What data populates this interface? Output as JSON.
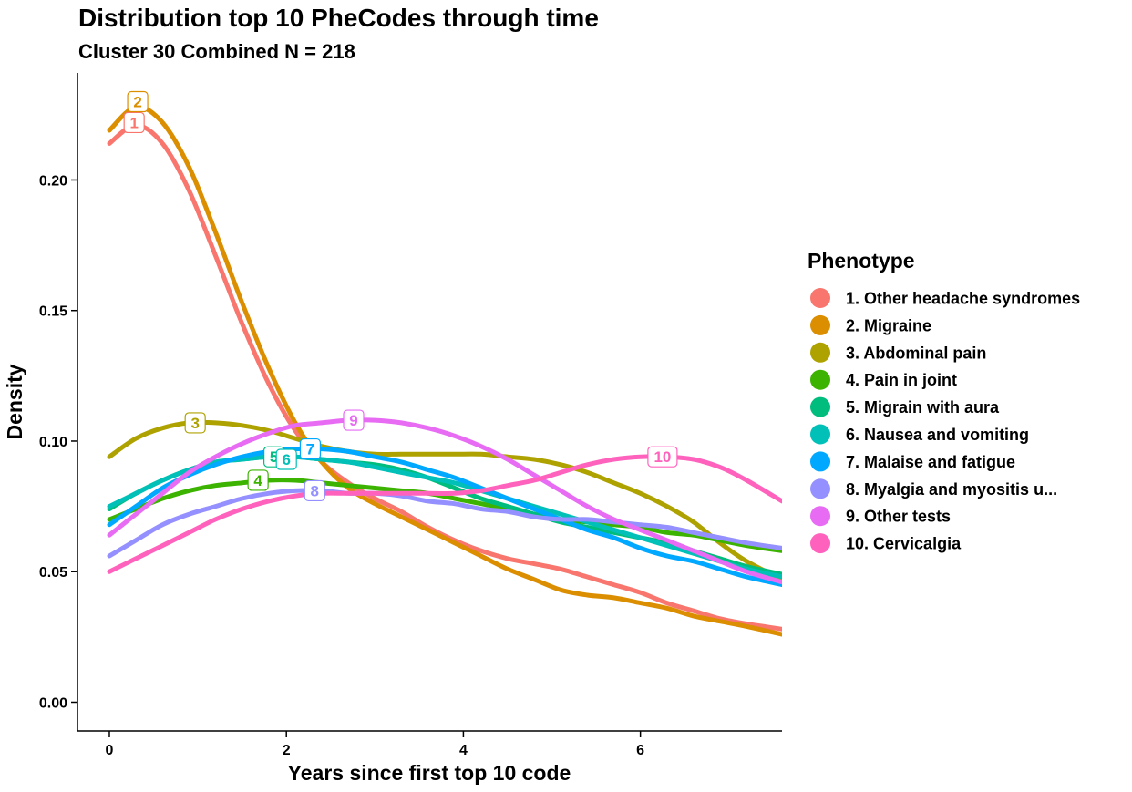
{
  "chart_data": {
    "type": "line",
    "title": "Distribution top 10 PheCodes through time",
    "subtitle": "Cluster 30 Combined N = 218",
    "xlabel": "Years since first top 10 code",
    "ylabel": "Density",
    "xlim": [
      -0.35,
      7.6
    ],
    "ylim": [
      -0.011,
      0.241
    ],
    "x_ticks": [
      0,
      2,
      4,
      6
    ],
    "x_tick_labels": [
      "0",
      "2",
      "4",
      "6"
    ],
    "y_ticks": [
      0.0,
      0.05,
      0.1,
      0.15,
      0.2
    ],
    "y_tick_labels": [
      "0.00",
      "0.05",
      "0.10",
      "0.15",
      "0.20"
    ],
    "grid": false,
    "legend": {
      "title": "Phenotype",
      "position": "right"
    },
    "series": [
      {
        "name": "1. Other headache syndromes",
        "label": "1",
        "color": "#F8766D",
        "label_at": [
          0.28,
          0.222
        ],
        "points": [
          [
            0,
            0.214
          ],
          [
            0.3,
            0.221
          ],
          [
            0.6,
            0.214
          ],
          [
            0.9,
            0.196
          ],
          [
            1.2,
            0.171
          ],
          [
            1.5,
            0.145
          ],
          [
            1.8,
            0.122
          ],
          [
            2.1,
            0.104
          ],
          [
            2.4,
            0.092
          ],
          [
            2.7,
            0.084
          ],
          [
            3.0,
            0.078
          ],
          [
            3.3,
            0.073
          ],
          [
            3.6,
            0.067
          ],
          [
            3.9,
            0.062
          ],
          [
            4.2,
            0.058
          ],
          [
            4.5,
            0.055
          ],
          [
            4.8,
            0.053
          ],
          [
            5.1,
            0.051
          ],
          [
            5.4,
            0.048
          ],
          [
            5.7,
            0.045
          ],
          [
            6.0,
            0.042
          ],
          [
            6.3,
            0.038
          ],
          [
            6.6,
            0.035
          ],
          [
            6.9,
            0.032
          ],
          [
            7.2,
            0.03
          ],
          [
            7.6,
            0.028
          ]
        ]
      },
      {
        "name": "2. Migraine",
        "label": "2",
        "color": "#DB8E00",
        "label_at": [
          0.32,
          0.23
        ],
        "points": [
          [
            0,
            0.219
          ],
          [
            0.3,
            0.228
          ],
          [
            0.6,
            0.222
          ],
          [
            0.9,
            0.205
          ],
          [
            1.2,
            0.18
          ],
          [
            1.5,
            0.153
          ],
          [
            1.8,
            0.128
          ],
          [
            2.1,
            0.107
          ],
          [
            2.4,
            0.092
          ],
          [
            2.7,
            0.082
          ],
          [
            3.0,
            0.076
          ],
          [
            3.3,
            0.071
          ],
          [
            3.6,
            0.066
          ],
          [
            3.9,
            0.061
          ],
          [
            4.2,
            0.056
          ],
          [
            4.5,
            0.051
          ],
          [
            4.8,
            0.047
          ],
          [
            5.1,
            0.043
          ],
          [
            5.4,
            0.041
          ],
          [
            5.7,
            0.04
          ],
          [
            6.0,
            0.038
          ],
          [
            6.3,
            0.036
          ],
          [
            6.6,
            0.033
          ],
          [
            6.9,
            0.031
          ],
          [
            7.2,
            0.029
          ],
          [
            7.6,
            0.026
          ]
        ]
      },
      {
        "name": "3. Abdominal pain",
        "label": "3",
        "color": "#AEA200",
        "label_at": [
          0.97,
          0.107
        ],
        "points": [
          [
            0,
            0.094
          ],
          [
            0.3,
            0.101
          ],
          [
            0.6,
            0.105
          ],
          [
            0.9,
            0.107
          ],
          [
            1.2,
            0.107
          ],
          [
            1.5,
            0.106
          ],
          [
            1.8,
            0.104
          ],
          [
            2.1,
            0.101
          ],
          [
            2.4,
            0.098
          ],
          [
            2.7,
            0.096
          ],
          [
            3.0,
            0.095
          ],
          [
            3.3,
            0.095
          ],
          [
            3.6,
            0.095
          ],
          [
            3.9,
            0.095
          ],
          [
            4.2,
            0.095
          ],
          [
            4.5,
            0.094
          ],
          [
            4.8,
            0.093
          ],
          [
            5.1,
            0.091
          ],
          [
            5.4,
            0.088
          ],
          [
            5.7,
            0.084
          ],
          [
            6.0,
            0.08
          ],
          [
            6.3,
            0.075
          ],
          [
            6.6,
            0.069
          ],
          [
            6.9,
            0.061
          ],
          [
            7.2,
            0.054
          ],
          [
            7.6,
            0.047
          ]
        ]
      },
      {
        "name": "4. Pain in joint",
        "label": "4",
        "color": "#3BB300",
        "label_at": [
          1.68,
          0.085
        ],
        "points": [
          [
            0,
            0.07
          ],
          [
            0.3,
            0.074
          ],
          [
            0.6,
            0.078
          ],
          [
            0.9,
            0.081
          ],
          [
            1.2,
            0.083
          ],
          [
            1.5,
            0.084
          ],
          [
            1.8,
            0.085
          ],
          [
            2.1,
            0.085
          ],
          [
            2.4,
            0.084
          ],
          [
            2.7,
            0.083
          ],
          [
            3.0,
            0.082
          ],
          [
            3.3,
            0.081
          ],
          [
            3.6,
            0.08
          ],
          [
            3.9,
            0.078
          ],
          [
            4.2,
            0.076
          ],
          [
            4.5,
            0.074
          ],
          [
            4.8,
            0.072
          ],
          [
            5.1,
            0.07
          ],
          [
            5.4,
            0.069
          ],
          [
            5.7,
            0.068
          ],
          [
            6.0,
            0.067
          ],
          [
            6.3,
            0.065
          ],
          [
            6.6,
            0.064
          ],
          [
            6.9,
            0.062
          ],
          [
            7.2,
            0.06
          ],
          [
            7.6,
            0.058
          ]
        ]
      },
      {
        "name": "5. Migrain with aura",
        "label": "5",
        "color": "#00BD7D",
        "label_at": [
          1.86,
          0.094
        ],
        "points": [
          [
            0,
            0.074
          ],
          [
            0.3,
            0.08
          ],
          [
            0.6,
            0.085
          ],
          [
            0.9,
            0.089
          ],
          [
            1.2,
            0.092
          ],
          [
            1.5,
            0.093
          ],
          [
            1.8,
            0.094
          ],
          [
            2.1,
            0.094
          ],
          [
            2.4,
            0.093
          ],
          [
            2.7,
            0.092
          ],
          [
            3.0,
            0.091
          ],
          [
            3.3,
            0.089
          ],
          [
            3.6,
            0.086
          ],
          [
            3.9,
            0.082
          ],
          [
            4.2,
            0.078
          ],
          [
            4.5,
            0.075
          ],
          [
            4.8,
            0.072
          ],
          [
            5.1,
            0.069
          ],
          [
            5.4,
            0.067
          ],
          [
            5.7,
            0.065
          ],
          [
            6.0,
            0.063
          ],
          [
            6.3,
            0.061
          ],
          [
            6.6,
            0.058
          ],
          [
            6.9,
            0.055
          ],
          [
            7.2,
            0.052
          ],
          [
            7.6,
            0.049
          ]
        ]
      },
      {
        "name": "6. Nausea and vomiting",
        "label": "6",
        "color": "#00C0B8",
        "label_at": [
          2.0,
          0.093
        ],
        "points": [
          [
            0,
            0.075
          ],
          [
            0.3,
            0.08
          ],
          [
            0.6,
            0.085
          ],
          [
            0.9,
            0.089
          ],
          [
            1.2,
            0.092
          ],
          [
            1.5,
            0.093
          ],
          [
            1.8,
            0.094
          ],
          [
            2.1,
            0.094
          ],
          [
            2.4,
            0.093
          ],
          [
            2.7,
            0.092
          ],
          [
            3.0,
            0.09
          ],
          [
            3.3,
            0.088
          ],
          [
            3.6,
            0.086
          ],
          [
            3.9,
            0.084
          ],
          [
            4.2,
            0.081
          ],
          [
            4.5,
            0.078
          ],
          [
            4.8,
            0.075
          ],
          [
            5.1,
            0.072
          ],
          [
            5.4,
            0.069
          ],
          [
            5.7,
            0.066
          ],
          [
            6.0,
            0.063
          ],
          [
            6.3,
            0.06
          ],
          [
            6.6,
            0.057
          ],
          [
            6.9,
            0.054
          ],
          [
            7.2,
            0.051
          ],
          [
            7.6,
            0.048
          ]
        ]
      },
      {
        "name": "7. Malaise and fatigue",
        "label": "7",
        "color": "#00A8FF",
        "label_at": [
          2.27,
          0.097
        ],
        "points": [
          [
            0,
            0.068
          ],
          [
            0.3,
            0.075
          ],
          [
            0.6,
            0.082
          ],
          [
            0.9,
            0.087
          ],
          [
            1.2,
            0.091
          ],
          [
            1.5,
            0.094
          ],
          [
            1.8,
            0.096
          ],
          [
            2.1,
            0.097
          ],
          [
            2.4,
            0.097
          ],
          [
            2.7,
            0.096
          ],
          [
            3.0,
            0.094
          ],
          [
            3.3,
            0.092
          ],
          [
            3.6,
            0.089
          ],
          [
            3.9,
            0.086
          ],
          [
            4.2,
            0.082
          ],
          [
            4.5,
            0.078
          ],
          [
            4.8,
            0.074
          ],
          [
            5.1,
            0.07
          ],
          [
            5.4,
            0.066
          ],
          [
            5.7,
            0.063
          ],
          [
            6.0,
            0.059
          ],
          [
            6.3,
            0.056
          ],
          [
            6.6,
            0.054
          ],
          [
            6.9,
            0.051
          ],
          [
            7.2,
            0.048
          ],
          [
            7.6,
            0.045
          ]
        ]
      },
      {
        "name": "8. Myalgia and myositis u...",
        "label": "8",
        "color": "#9590FF",
        "label_at": [
          2.32,
          0.081
        ],
        "points": [
          [
            0,
            0.056
          ],
          [
            0.3,
            0.062
          ],
          [
            0.6,
            0.068
          ],
          [
            0.9,
            0.072
          ],
          [
            1.2,
            0.075
          ],
          [
            1.5,
            0.078
          ],
          [
            1.8,
            0.08
          ],
          [
            2.1,
            0.081
          ],
          [
            2.4,
            0.081
          ],
          [
            2.7,
            0.08
          ],
          [
            3.0,
            0.08
          ],
          [
            3.3,
            0.079
          ],
          [
            3.6,
            0.077
          ],
          [
            3.9,
            0.076
          ],
          [
            4.2,
            0.074
          ],
          [
            4.5,
            0.073
          ],
          [
            4.8,
            0.071
          ],
          [
            5.1,
            0.07
          ],
          [
            5.4,
            0.07
          ],
          [
            5.7,
            0.069
          ],
          [
            6.0,
            0.068
          ],
          [
            6.3,
            0.067
          ],
          [
            6.6,
            0.065
          ],
          [
            6.9,
            0.063
          ],
          [
            7.2,
            0.061
          ],
          [
            7.6,
            0.059
          ]
        ]
      },
      {
        "name": "9. Other tests",
        "label": "9",
        "color": "#E76BF3",
        "label_at": [
          2.76,
          0.108
        ],
        "points": [
          [
            0,
            0.064
          ],
          [
            0.3,
            0.072
          ],
          [
            0.6,
            0.08
          ],
          [
            0.9,
            0.088
          ],
          [
            1.2,
            0.094
          ],
          [
            1.5,
            0.099
          ],
          [
            1.8,
            0.103
          ],
          [
            2.1,
            0.106
          ],
          [
            2.4,
            0.107
          ],
          [
            2.7,
            0.108
          ],
          [
            3.0,
            0.108
          ],
          [
            3.3,
            0.107
          ],
          [
            3.6,
            0.105
          ],
          [
            3.9,
            0.102
          ],
          [
            4.2,
            0.098
          ],
          [
            4.5,
            0.093
          ],
          [
            4.8,
            0.087
          ],
          [
            5.1,
            0.081
          ],
          [
            5.4,
            0.075
          ],
          [
            5.7,
            0.07
          ],
          [
            6.0,
            0.066
          ],
          [
            6.3,
            0.062
          ],
          [
            6.6,
            0.058
          ],
          [
            6.9,
            0.054
          ],
          [
            7.2,
            0.05
          ],
          [
            7.6,
            0.046
          ]
        ]
      },
      {
        "name": "10. Cervicalgia",
        "label": "10",
        "color": "#FF62BC",
        "label_at": [
          6.25,
          0.094
        ],
        "points": [
          [
            0,
            0.05
          ],
          [
            0.3,
            0.055
          ],
          [
            0.6,
            0.06
          ],
          [
            0.9,
            0.065
          ],
          [
            1.2,
            0.07
          ],
          [
            1.5,
            0.074
          ],
          [
            1.8,
            0.077
          ],
          [
            2.1,
            0.079
          ],
          [
            2.4,
            0.08
          ],
          [
            2.7,
            0.08
          ],
          [
            3.0,
            0.08
          ],
          [
            3.3,
            0.08
          ],
          [
            3.6,
            0.08
          ],
          [
            3.9,
            0.08
          ],
          [
            4.2,
            0.081
          ],
          [
            4.5,
            0.083
          ],
          [
            4.8,
            0.085
          ],
          [
            5.1,
            0.088
          ],
          [
            5.4,
            0.091
          ],
          [
            5.7,
            0.093
          ],
          [
            6.0,
            0.094
          ],
          [
            6.3,
            0.094
          ],
          [
            6.6,
            0.093
          ],
          [
            6.9,
            0.09
          ],
          [
            7.2,
            0.085
          ],
          [
            7.6,
            0.077
          ]
        ]
      }
    ]
  }
}
